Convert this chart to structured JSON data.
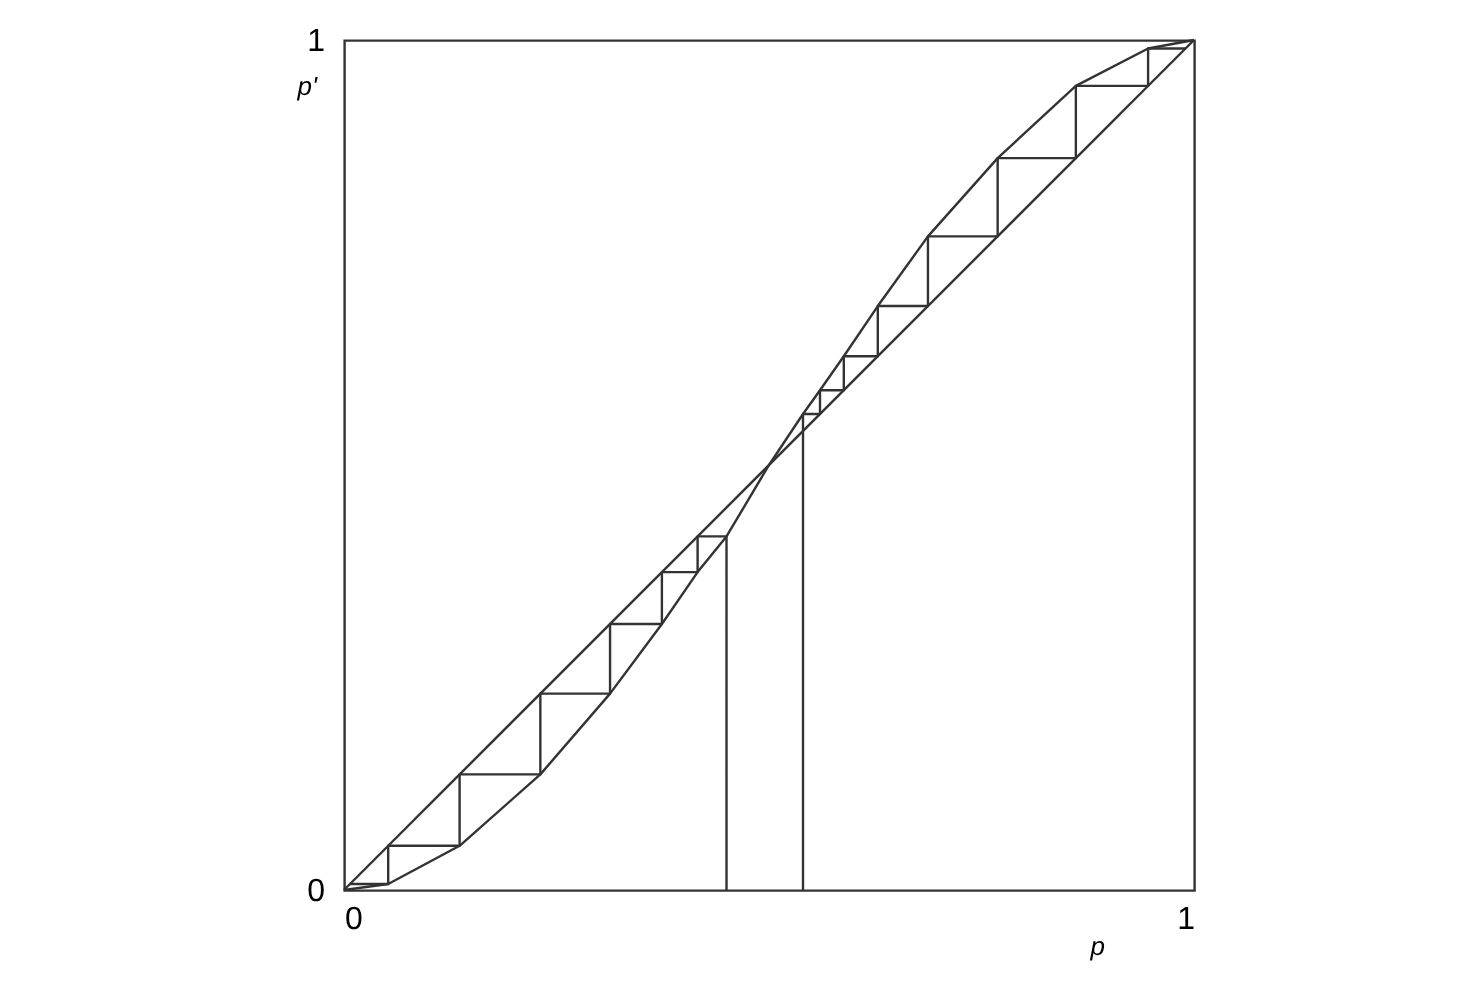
{
  "chart_data": {
    "type": "line",
    "xlabel": "p",
    "ylabel": "p'",
    "xlim": [
      0,
      1
    ],
    "ylim": [
      0,
      1
    ],
    "xticks": [
      0,
      1
    ],
    "yticks": [
      0,
      1
    ],
    "grid": false,
    "marker": "none",
    "line_style": "solid",
    "series": [
      {
        "color": "#333333",
        "x": [
          0,
          1
        ],
        "values": [
          0,
          1
        ]
      },
      {
        "color": "#333333",
        "x": [
          0,
          0.052,
          0.136,
          0.231,
          0.313,
          0.374,
          0.416,
          0.45,
          0.5,
          0.54,
          0.56,
          0.588,
          0.628,
          0.687,
          0.769,
          0.861,
          0.946,
          1
        ],
        "values": [
          0,
          0.007,
          0.052,
          0.136,
          0.231,
          0.313,
          0.374,
          0.416,
          0.5,
          0.56,
          0.588,
          0.628,
          0.687,
          0.769,
          0.861,
          0.946,
          0.99,
          1
        ]
      },
      {
        "color": "#333333",
        "x": [
          0.45,
          0.45,
          0.416,
          0.416,
          0.374,
          0.374,
          0.313,
          0.313,
          0.231,
          0.231,
          0.136,
          0.136,
          0.052,
          0.052,
          0.007
        ],
        "values": [
          0,
          0.416,
          0.416,
          0.374,
          0.374,
          0.313,
          0.313,
          0.231,
          0.231,
          0.136,
          0.136,
          0.052,
          0.052,
          0.007,
          0.007
        ]
      },
      {
        "color": "#333333",
        "x": [
          0.54,
          0.54,
          0.56,
          0.56,
          0.588,
          0.588,
          0.628,
          0.628,
          0.687,
          0.687,
          0.769,
          0.769,
          0.861,
          0.861,
          0.946,
          0.946,
          0.99
        ],
        "values": [
          0,
          0.56,
          0.56,
          0.588,
          0.588,
          0.628,
          0.628,
          0.687,
          0.687,
          0.769,
          0.769,
          0.861,
          0.861,
          0.946,
          0.946,
          0.99,
          0.99
        ]
      }
    ]
  }
}
